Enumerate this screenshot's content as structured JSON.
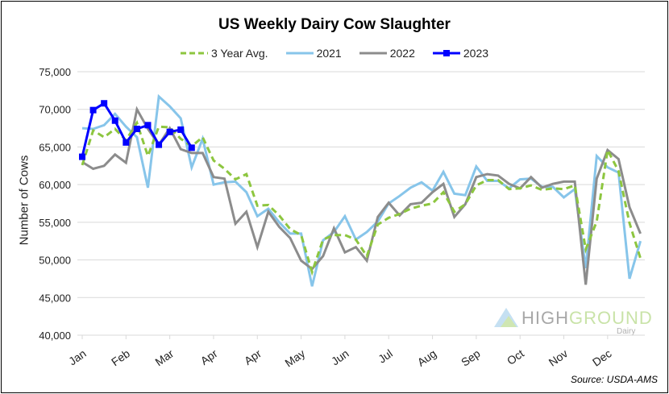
{
  "chart_data": {
    "type": "line",
    "title": "US Weekly Dairy Cow Slaughter",
    "xlabel": "",
    "ylabel": "Number of Cows",
    "ylim": [
      40000,
      75000
    ],
    "yticks": [
      40000,
      45000,
      50000,
      55000,
      60000,
      65000,
      70000,
      75000
    ],
    "ytick_labels": [
      "40,000",
      "45,000",
      "50,000",
      "55,000",
      "60,000",
      "65,000",
      "70,000",
      "75,000"
    ],
    "xtick_labels": [
      "Jan",
      "Feb",
      "Mar",
      "Apr",
      "Apr",
      "May",
      "Jun",
      "Jul",
      "Aug",
      "Sep",
      "Oct",
      "Nov",
      "Dec"
    ],
    "weeks": 52,
    "grid": true,
    "legend_position": "top",
    "series": [
      {
        "name": "3 Year Avg.",
        "color": "#8DC63F",
        "style": "dashed",
        "values": [
          62600,
          67200,
          66300,
          67400,
          65900,
          68200,
          63800,
          67700,
          67600,
          66100,
          65100,
          66300,
          63200,
          62100,
          60700,
          61400,
          57200,
          57300,
          55900,
          54100,
          53300,
          48400,
          52700,
          53300,
          53300,
          52700,
          50500,
          54700,
          55600,
          56100,
          56800,
          57200,
          57500,
          59000,
          56400,
          57400,
          59900,
          60600,
          60600,
          59400,
          59500,
          59900,
          59300,
          59500,
          59400,
          59900,
          51400,
          55100,
          64600,
          61800,
          54900,
          50200
        ]
      },
      {
        "name": "2021",
        "color": "#87C5EA",
        "style": "solid",
        "values": [
          67500,
          67400,
          67900,
          69400,
          67700,
          66300,
          59600,
          71700,
          70400,
          68800,
          62300,
          66100,
          60000,
          60300,
          60400,
          59000,
          55800,
          56800,
          55000,
          53500,
          53500,
          46500,
          52600,
          53700,
          55800,
          52700,
          53700,
          55100,
          57500,
          58500,
          59600,
          60300,
          59200,
          61700,
          58800,
          58600,
          62400,
          60500,
          60500,
          59500,
          60700,
          60800,
          59700,
          59700,
          58300,
          59400,
          48900,
          63800,
          62300,
          61600,
          47500,
          52500
        ]
      },
      {
        "name": "2022",
        "color": "#8C8C8C",
        "style": "solid",
        "values": [
          63000,
          62100,
          62500,
          64000,
          62900,
          70000,
          67400,
          65300,
          67500,
          64700,
          64200,
          64200,
          61000,
          60800,
          54800,
          56400,
          51700,
          56400,
          54400,
          52900,
          49900,
          48800,
          50500,
          54200,
          51000,
          51700,
          49900,
          55700,
          57600,
          55900,
          57400,
          57600,
          59000,
          60100,
          55700,
          57400,
          61000,
          61400,
          61200,
          60100,
          59500,
          61000,
          59600,
          60100,
          60400,
          60400,
          46700,
          60800,
          64600,
          63400,
          57000,
          53500
        ]
      },
      {
        "name": "2023",
        "color": "#0000FF",
        "style": "solid-markers",
        "values": [
          63700,
          69900,
          70800,
          68500,
          65600,
          67400,
          67900,
          65300,
          67000,
          67300,
          64900
        ]
      }
    ],
    "annotations": {
      "source": "Source: USDA-AMS"
    }
  },
  "legend": [
    "3 Year Avg.",
    "2021",
    "2022",
    "2023"
  ],
  "logo": {
    "high": "HIGH",
    "ground": "GROUND",
    "dairy": "Dairy"
  }
}
